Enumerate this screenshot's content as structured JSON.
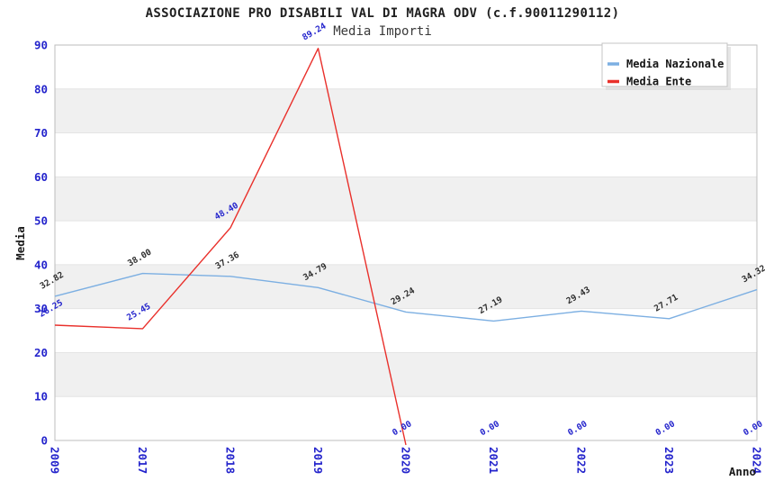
{
  "header": {
    "title": "ASSOCIAZIONE PRO DISABILI VAL DI MAGRA ODV (c.f.90011290112)",
    "subtitle": "Media Importi"
  },
  "axes": {
    "y_label": "Media",
    "x_label": "Anno"
  },
  "legend": {
    "position": "top-right",
    "entries": [
      {
        "label": "Media Nazionale",
        "color": "#7cafe2"
      },
      {
        "label": "Media Ente",
        "color": "#e9302b"
      }
    ]
  },
  "colors": {
    "tick_label": "#2424cc",
    "band_gray": "#f0f0f0",
    "band_white": "#ffffff",
    "gridline": "#e4e4e4",
    "plot_border": "#bdbdbd",
    "nazionale_line": "#7cafe2",
    "ente_line": "#e9302b",
    "nazionale_point_label": "#2e2e2e",
    "ente_point_label": "#2424cc"
  },
  "chart_data": {
    "type": "line",
    "title": "ASSOCIAZIONE PRO DISABILI VAL DI MAGRA ODV (c.f.90011290112)",
    "subtitle": "Media Importi",
    "xlabel": "Anno",
    "ylabel": "Media",
    "ylim": [
      0,
      90
    ],
    "y_ticks": [
      0,
      10,
      20,
      30,
      40,
      50,
      60,
      70,
      80,
      90
    ],
    "categories": [
      "2009",
      "2017",
      "2018",
      "2019",
      "2020",
      "2021",
      "2022",
      "2023",
      "2024"
    ],
    "grid": "horizontal-bands-alternating",
    "legend_position": "top-right",
    "series": [
      {
        "name": "Media Nazionale",
        "color": "#7cafe2",
        "label_color": "#2e2e2e",
        "values": [
          32.82,
          38.0,
          37.36,
          34.79,
          29.24,
          27.19,
          29.43,
          27.71,
          34.32
        ]
      },
      {
        "name": "Media Ente",
        "color": "#e9302b",
        "label_color": "#2424cc",
        "values": [
          26.25,
          25.45,
          48.4,
          89.24,
          0.0,
          0.0,
          0.0,
          0.0,
          0.0
        ],
        "line_drawn_through_index": 4
      }
    ]
  }
}
